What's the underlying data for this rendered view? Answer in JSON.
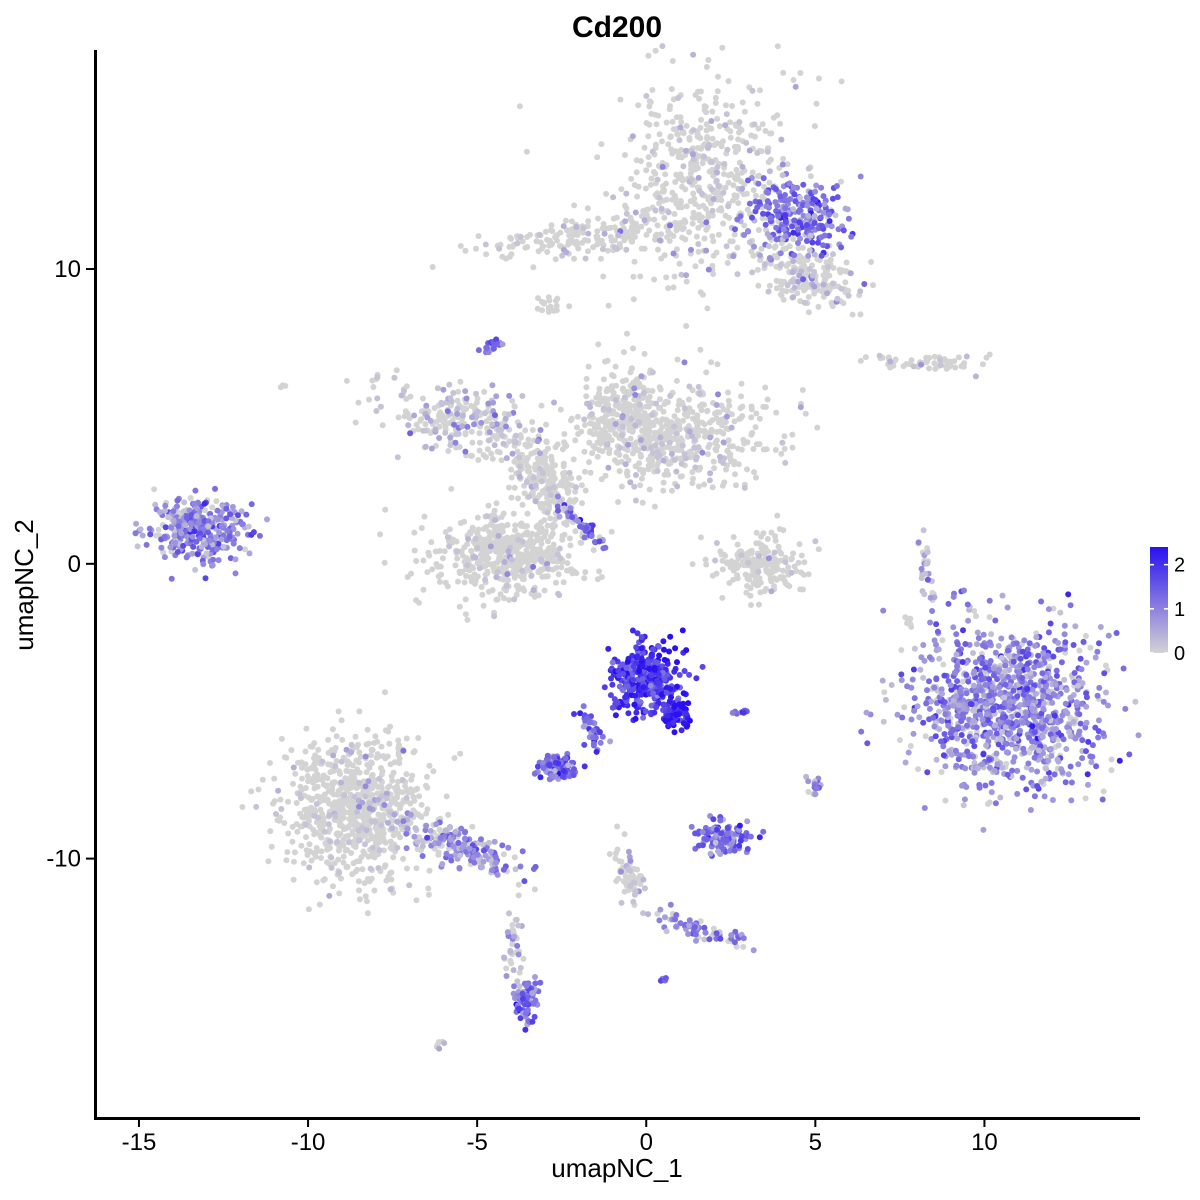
{
  "chart_data": {
    "type": "scatter",
    "title": "Cd200",
    "xlabel": "umapNC_1",
    "ylabel": "umapNC_2",
    "xlim": [
      -16.3,
      14.6
    ],
    "ylim": [
      -18.8,
      17.6
    ],
    "x_ticks": [
      -15,
      -10,
      -5,
      0,
      5,
      10
    ],
    "x_tick_labels": [
      "-15",
      "-10",
      "-5",
      "0",
      "5",
      "10"
    ],
    "y_ticks": [
      -10,
      0,
      10
    ],
    "y_tick_labels": [
      "-10",
      "0",
      "10"
    ],
    "grid": false,
    "legend": {
      "position": "right",
      "type": "colorbar",
      "labels": [
        "2",
        "1",
        "0"
      ],
      "values": [
        2,
        1,
        0
      ],
      "color_low": "#d3d3d3",
      "color_high": "#2a10f0"
    },
    "point_color_low": "#d3d3d3",
    "point_color_high": "#2a10f0",
    "clusters": [
      {
        "id": "top-large",
        "center": [
          1.8,
          13.2
        ],
        "spread": [
          2.4,
          3.0
        ],
        "n": 520,
        "expression": 0.15,
        "rotation": 0
      },
      {
        "id": "top-right-arm",
        "center": [
          4.5,
          11.8
        ],
        "spread": [
          1.4,
          1.0
        ],
        "n": 220,
        "expression": 1.2,
        "rotation": -20
      },
      {
        "id": "top-right-lower",
        "center": [
          4.8,
          9.8
        ],
        "spread": [
          1.5,
          0.9
        ],
        "n": 200,
        "expression": 0.3,
        "rotation": -25
      },
      {
        "id": "top-left-arm",
        "center": [
          -1.5,
          11.1
        ],
        "spread": [
          3.0,
          0.6
        ],
        "n": 200,
        "expression": 0.1,
        "rotation": 5
      },
      {
        "id": "small-10-left",
        "center": [
          -2.9,
          8.7
        ],
        "spread": [
          0.3,
          0.3
        ],
        "n": 20,
        "expression": 0.0,
        "rotation": 0
      },
      {
        "id": "center-right-blob",
        "center": [
          0.8,
          4.4
        ],
        "spread": [
          2.5,
          1.6
        ],
        "n": 520,
        "expression": 0.15,
        "rotation": 0
      },
      {
        "id": "center-upper",
        "center": [
          -0.8,
          5.3
        ],
        "spread": [
          1.0,
          1.5
        ],
        "n": 180,
        "expression": 0.1,
        "rotation": 0
      },
      {
        "id": "center-left-arm",
        "center": [
          -5.3,
          4.8
        ],
        "spread": [
          2.5,
          1.0
        ],
        "n": 260,
        "expression": 0.4,
        "rotation": -15
      },
      {
        "id": "center-lower-blob",
        "center": [
          -4.1,
          0.3
        ],
        "spread": [
          2.0,
          1.2
        ],
        "n": 520,
        "expression": 0.05,
        "rotation": 0
      },
      {
        "id": "center-stalk",
        "center": [
          -3.0,
          2.8
        ],
        "spread": [
          0.7,
          1.3
        ],
        "n": 220,
        "expression": 0.1,
        "rotation": 30
      },
      {
        "id": "purple-streak",
        "center": [
          -1.9,
          1.3
        ],
        "spread": [
          0.9,
          0.15
        ],
        "n": 40,
        "expression": 1.5,
        "rotation": -50
      },
      {
        "id": "upper-small-purple",
        "center": [
          -4.6,
          7.4
        ],
        "spread": [
          0.25,
          0.25
        ],
        "n": 18,
        "expression": 1.3,
        "rotation": 0
      },
      {
        "id": "far-left-cluster",
        "center": [
          -13.2,
          1.2
        ],
        "spread": [
          1.3,
          1.0
        ],
        "n": 320,
        "expression": 1.0,
        "rotation": 0
      },
      {
        "id": "mid-right-small",
        "center": [
          3.4,
          0.0
        ],
        "spread": [
          1.2,
          0.9
        ],
        "n": 200,
        "expression": 0.05,
        "rotation": 0
      },
      {
        "id": "right-thin-arc",
        "center": [
          8.3,
          -0.2
        ],
        "spread": [
          0.2,
          1.0
        ],
        "n": 28,
        "expression": 0.6,
        "rotation": 10
      },
      {
        "id": "upper-right-thin",
        "center": [
          8.5,
          6.8
        ],
        "spread": [
          1.5,
          0.25
        ],
        "n": 60,
        "expression": 0.2,
        "rotation": 0
      },
      {
        "id": "big-right-blob",
        "center": [
          10.7,
          -4.8
        ],
        "spread": [
          2.6,
          2.5
        ],
        "n": 1100,
        "expression": 0.95,
        "rotation": 0
      },
      {
        "id": "center-purple-main",
        "center": [
          0.0,
          -3.9
        ],
        "spread": [
          0.9,
          1.1
        ],
        "n": 360,
        "expression": 1.95,
        "rotation": -20
      },
      {
        "id": "center-purple-tail",
        "center": [
          0.9,
          -5.1
        ],
        "spread": [
          0.4,
          0.5
        ],
        "n": 60,
        "expression": 2.2,
        "rotation": 0
      },
      {
        "id": "left-purple-small",
        "center": [
          -2.6,
          -6.9
        ],
        "spread": [
          0.55,
          0.35
        ],
        "n": 110,
        "expression": 1.35,
        "rotation": 0
      },
      {
        "id": "purple-bridge",
        "center": [
          -1.6,
          -5.7
        ],
        "spread": [
          0.25,
          0.8
        ],
        "n": 40,
        "expression": 1.3,
        "rotation": 20
      },
      {
        "id": "lower-right-purple",
        "center": [
          2.3,
          -9.3
        ],
        "spread": [
          0.7,
          0.45
        ],
        "n": 130,
        "expression": 1.25,
        "rotation": 0
      },
      {
        "id": "small-purple-pair",
        "center": [
          2.8,
          -5.0
        ],
        "spread": [
          0.25,
          0.1
        ],
        "n": 12,
        "expression": 1.9,
        "rotation": 0
      },
      {
        "id": "small-right-purple",
        "center": [
          5.0,
          -7.5
        ],
        "spread": [
          0.2,
          0.3
        ],
        "n": 18,
        "expression": 0.8,
        "rotation": 0
      },
      {
        "id": "lower-left-large",
        "center": [
          -8.6,
          -8.3
        ],
        "spread": [
          2.0,
          2.2
        ],
        "n": 780,
        "expression": 0.08,
        "rotation": 0
      },
      {
        "id": "lower-left-arm",
        "center": [
          -5.5,
          -9.6
        ],
        "spread": [
          1.8,
          0.55
        ],
        "n": 200,
        "expression": 0.85,
        "rotation": -25
      },
      {
        "id": "lower-tail",
        "center": [
          -3.9,
          -12.8
        ],
        "spread": [
          0.25,
          1.3
        ],
        "n": 40,
        "expression": 0.4,
        "rotation": 0
      },
      {
        "id": "bottom-purple",
        "center": [
          -3.6,
          -14.8
        ],
        "spread": [
          0.3,
          0.65
        ],
        "n": 90,
        "expression": 1.3,
        "rotation": 0
      },
      {
        "id": "bottom-fork-stem",
        "center": [
          -0.5,
          -10.6
        ],
        "spread": [
          0.3,
          1.0
        ],
        "n": 70,
        "expression": 0.2,
        "rotation": 15
      },
      {
        "id": "bottom-fork-right",
        "center": [
          1.6,
          -12.4
        ],
        "spread": [
          1.3,
          0.3
        ],
        "n": 70,
        "expression": 0.9,
        "rotation": -20
      },
      {
        "id": "bottom-tiny",
        "center": [
          0.5,
          -14.1
        ],
        "spread": [
          0.1,
          0.1
        ],
        "n": 6,
        "expression": 1.2,
        "rotation": 0
      },
      {
        "id": "bottom-left-tiny",
        "center": [
          -6.1,
          -16.3
        ],
        "spread": [
          0.15,
          0.1
        ],
        "n": 6,
        "expression": 0.5,
        "rotation": 0
      },
      {
        "id": "right-tiny-pair",
        "center": [
          7.8,
          -2.0
        ],
        "spread": [
          0.15,
          0.3
        ],
        "n": 8,
        "expression": 0.1,
        "rotation": 0
      },
      {
        "id": "far-left-tiny",
        "center": [
          -10.8,
          6.0
        ],
        "spread": [
          0.1,
          0.1
        ],
        "n": 3,
        "expression": 0.0,
        "rotation": 0
      }
    ]
  }
}
